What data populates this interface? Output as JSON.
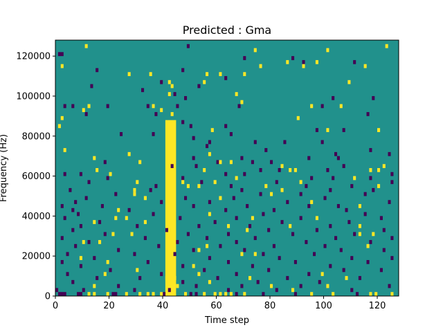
{
  "chart_data": {
    "type": "heatmap",
    "title": "Predicted : Gma",
    "xlabel": "Time step",
    "ylabel": "Frequency (Hz)",
    "xlim": [
      0,
      128
    ],
    "ylim": [
      0,
      128000
    ],
    "xticks": [
      0,
      20,
      40,
      60,
      80,
      100,
      120
    ],
    "yticks": [
      0,
      20000,
      40000,
      60000,
      80000,
      100000,
      120000
    ],
    "xtick_labels": [
      "0",
      "20",
      "40",
      "60",
      "80",
      "100",
      "120"
    ],
    "ytick_labels": [
      "0",
      "20000",
      "40000",
      "60000",
      "80000",
      "100000",
      "120000"
    ],
    "n_time_steps": 128,
    "n_freq_bins": 128,
    "grid": false,
    "colormap": "viridis",
    "colors": {
      "low": "#440154",
      "mid": "#21918c",
      "high": "#fde725"
    },
    "values_description": "three-level prediction: -1 low (purple), 0 background (teal), 1 high (yellow)",
    "bright_band": {
      "x_start": 41,
      "x_end": 45,
      "y_start": 0,
      "y_end": 88000,
      "value": 1
    },
    "cells": {
      "high": [
        [
          11,
          124000
        ],
        [
          123,
          124000
        ],
        [
          74,
          122000
        ],
        [
          101,
          122000
        ],
        [
          86,
          116000
        ],
        [
          97,
          116000
        ],
        [
          2,
          114000
        ],
        [
          76,
          114000
        ],
        [
          92,
          114000
        ],
        [
          115,
          114000
        ],
        [
          27,
          110000
        ],
        [
          35,
          110000
        ],
        [
          56,
          110000
        ],
        [
          61,
          110000
        ],
        [
          70,
          110000
        ],
        [
          42,
          106000
        ],
        [
          55,
          106000
        ],
        [
          109,
          106000
        ],
        [
          43,
          104000
        ],
        [
          42,
          100000
        ],
        [
          67,
          100000
        ],
        [
          69,
          96000
        ],
        [
          12,
          94000
        ],
        [
          36,
          94000
        ],
        [
          95,
          94000
        ],
        [
          106,
          94000
        ],
        [
          10,
          92000
        ],
        [
          39,
          92000
        ],
        [
          43,
          90000
        ],
        [
          2,
          88000
        ],
        [
          90,
          88000
        ],
        [
          1,
          84000
        ],
        [
          58,
          82000
        ],
        [
          101,
          82000
        ],
        [
          120,
          82000
        ],
        [
          3,
          72000
        ],
        [
          27,
          70000
        ],
        [
          57,
          70000
        ],
        [
          14,
          68000
        ],
        [
          31,
          66000
        ],
        [
          61,
          66000
        ],
        [
          65,
          66000
        ],
        [
          84,
          64000
        ],
        [
          122,
          64000
        ],
        [
          15,
          62000
        ],
        [
          55,
          62000
        ],
        [
          87,
          62000
        ],
        [
          89,
          62000
        ],
        [
          117,
          62000
        ],
        [
          120,
          62000
        ],
        [
          20,
          60000
        ],
        [
          67,
          58000
        ],
        [
          111,
          58000
        ],
        [
          30,
          56000
        ],
        [
          47,
          56000
        ],
        [
          59,
          56000
        ],
        [
          91,
          56000
        ],
        [
          49,
          54000
        ],
        [
          53,
          54000
        ],
        [
          78,
          54000
        ],
        [
          120,
          54000
        ],
        [
          29,
          52000
        ],
        [
          84,
          52000
        ],
        [
          29,
          50000
        ],
        [
          80,
          50000
        ],
        [
          33,
          48000
        ],
        [
          61,
          48000
        ],
        [
          95,
          46000
        ],
        [
          113,
          44000
        ],
        [
          23,
          42000
        ],
        [
          43,
          40000
        ],
        [
          57,
          40000
        ],
        [
          22,
          38000
        ],
        [
          26,
          38000
        ],
        [
          73,
          38000
        ],
        [
          97,
          38000
        ],
        [
          14,
          36000
        ],
        [
          33,
          36000
        ],
        [
          64,
          34000
        ],
        [
          87,
          34000
        ],
        [
          113,
          34000
        ],
        [
          71,
          32000
        ],
        [
          21,
          30000
        ],
        [
          28,
          30000
        ],
        [
          113,
          30000
        ],
        [
          118,
          30000
        ],
        [
          10,
          26000
        ],
        [
          16,
          26000
        ],
        [
          56,
          24000
        ],
        [
          116,
          24000
        ],
        [
          53,
          22000
        ],
        [
          69,
          20000
        ],
        [
          74,
          20000
        ],
        [
          9,
          18000
        ],
        [
          19,
          16000
        ],
        [
          51,
          14000
        ],
        [
          30,
          12000
        ],
        [
          18,
          10000
        ],
        [
          53,
          10000
        ],
        [
          99,
          10000
        ],
        [
          41,
          8000
        ],
        [
          44,
          8000
        ],
        [
          72,
          8000
        ],
        [
          108,
          8000
        ],
        [
          57,
          6000
        ],
        [
          14,
          4000
        ],
        [
          45,
          4000
        ],
        [
          80,
          4000
        ],
        [
          101,
          4000
        ],
        [
          88,
          2000
        ],
        [
          12,
          0
        ],
        [
          14,
          0
        ],
        [
          19,
          0
        ],
        [
          26,
          0
        ],
        [
          31,
          0
        ],
        [
          34,
          0
        ],
        [
          36,
          0
        ],
        [
          39,
          0
        ],
        [
          48,
          0
        ],
        [
          55,
          0
        ],
        [
          59,
          0
        ],
        [
          61,
          0
        ],
        [
          63,
          0
        ],
        [
          65,
          0
        ],
        [
          70,
          0
        ],
        [
          95,
          0
        ],
        [
          103,
          0
        ],
        [
          117,
          0
        ],
        [
          119,
          0
        ],
        [
          125,
          0
        ]
      ],
      "low": [
        [
          1,
          120000
        ],
        [
          2,
          120000
        ],
        [
          49,
          124000
        ],
        [
          70,
          118000
        ],
        [
          88,
          118000
        ],
        [
          92,
          116000
        ],
        [
          111,
          116000
        ],
        [
          15,
          112000
        ],
        [
          47,
          112000
        ],
        [
          63,
          108000
        ],
        [
          39,
          106000
        ],
        [
          13,
          104000
        ],
        [
          53,
          104000
        ],
        [
          32,
          102000
        ],
        [
          44,
          100000
        ],
        [
          48,
          98000
        ],
        [
          103,
          98000
        ],
        [
          118,
          98000
        ],
        [
          3,
          94000
        ],
        [
          6,
          94000
        ],
        [
          19,
          94000
        ],
        [
          34,
          94000
        ],
        [
          45,
          94000
        ],
        [
          68,
          94000
        ],
        [
          99,
          94000
        ],
        [
          11,
          90000
        ],
        [
          37,
          90000
        ],
        [
          116,
          90000
        ],
        [
          47,
          86000
        ],
        [
          50,
          84000
        ],
        [
          63,
          84000
        ],
        [
          97,
          82000
        ],
        [
          107,
          82000
        ],
        [
          24,
          80000
        ],
        [
          36,
          80000
        ],
        [
          65,
          80000
        ],
        [
          51,
          78000
        ],
        [
          57,
          76000
        ],
        [
          74,
          76000
        ],
        [
          85,
          76000
        ],
        [
          99,
          76000
        ],
        [
          56,
          74000
        ],
        [
          78,
          72000
        ],
        [
          117,
          72000
        ],
        [
          104,
          70000
        ],
        [
          124,
          70000
        ],
        [
          51,
          68000
        ],
        [
          69,
          68000
        ],
        [
          94,
          68000
        ],
        [
          105,
          68000
        ],
        [
          18,
          66000
        ],
        [
          60,
          66000
        ],
        [
          73,
          66000
        ],
        [
          80,
          66000
        ],
        [
          43,
          64000
        ],
        [
          52,
          64000
        ],
        [
          107,
          64000
        ],
        [
          76,
          62000
        ],
        [
          83,
          62000
        ],
        [
          101,
          62000
        ],
        [
          3,
          60000
        ],
        [
          9,
          60000
        ],
        [
          63,
          60000
        ],
        [
          70,
          60000
        ],
        [
          125,
          60000
        ],
        [
          19,
          58000
        ],
        [
          47,
          58000
        ],
        [
          95,
          58000
        ],
        [
          103,
          58000
        ],
        [
          117,
          58000
        ],
        [
          12,
          56000
        ],
        [
          54,
          56000
        ],
        [
          82,
          56000
        ],
        [
          125,
          56000
        ],
        [
          37,
          54000
        ],
        [
          65,
          54000
        ],
        [
          93,
          54000
        ],
        [
          110,
          54000
        ],
        [
          5,
          52000
        ],
        [
          35,
          52000
        ],
        [
          69,
          52000
        ],
        [
          102,
          52000
        ],
        [
          118,
          52000
        ],
        [
          22,
          50000
        ],
        [
          76,
          50000
        ],
        [
          91,
          50000
        ],
        [
          115,
          50000
        ],
        [
          11,
          48000
        ],
        [
          48,
          48000
        ],
        [
          66,
          48000
        ],
        [
          100,
          48000
        ],
        [
          7,
          46000
        ],
        [
          39,
          46000
        ],
        [
          57,
          46000
        ],
        [
          86,
          46000
        ],
        [
          124,
          46000
        ],
        [
          2,
          44000
        ],
        [
          17,
          44000
        ],
        [
          51,
          44000
        ],
        [
          71,
          44000
        ],
        [
          94,
          44000
        ],
        [
          105,
          44000
        ],
        [
          6,
          42000
        ],
        [
          27,
          42000
        ],
        [
          63,
          42000
        ],
        [
          81,
          42000
        ],
        [
          108,
          42000
        ],
        [
          8,
          40000
        ],
        [
          36,
          40000
        ],
        [
          77,
          40000
        ],
        [
          115,
          40000
        ],
        [
          3,
          38000
        ],
        [
          46,
          38000
        ],
        [
          67,
          38000
        ],
        [
          91,
          38000
        ],
        [
          121,
          38000
        ],
        [
          16,
          36000
        ],
        [
          59,
          36000
        ],
        [
          84,
          36000
        ],
        [
          109,
          36000
        ],
        [
          9,
          34000
        ],
        [
          30,
          34000
        ],
        [
          53,
          34000
        ],
        [
          72,
          34000
        ],
        [
          102,
          34000
        ],
        [
          6,
          32000
        ],
        [
          41,
          32000
        ],
        [
          79,
          32000
        ],
        [
          97,
          32000
        ],
        [
          122,
          32000
        ],
        [
          18,
          30000
        ],
        [
          49,
          30000
        ],
        [
          64,
          30000
        ],
        [
          88,
          30000
        ],
        [
          111,
          30000
        ],
        [
          2,
          28000
        ],
        [
          33,
          28000
        ],
        [
          56,
          28000
        ],
        [
          74,
          28000
        ],
        [
          104,
          28000
        ],
        [
          125,
          28000
        ],
        [
          12,
          26000
        ],
        [
          45,
          26000
        ],
        [
          67,
          26000
        ],
        [
          93,
          26000
        ],
        [
          117,
          26000
        ],
        [
          7,
          24000
        ],
        [
          38,
          24000
        ],
        [
          61,
          24000
        ],
        [
          81,
          24000
        ],
        [
          100,
          24000
        ],
        [
          23,
          22000
        ],
        [
          51,
          22000
        ],
        [
          70,
          22000
        ],
        [
          106,
          22000
        ],
        [
          122,
          22000
        ],
        [
          4,
          20000
        ],
        [
          29,
          20000
        ],
        [
          44,
          20000
        ],
        [
          77,
          20000
        ],
        [
          96,
          20000
        ],
        [
          14,
          18000
        ],
        [
          57,
          18000
        ],
        [
          83,
          18000
        ],
        [
          110,
          18000
        ],
        [
          125,
          18000
        ],
        [
          2,
          16000
        ],
        [
          34,
          16000
        ],
        [
          64,
          16000
        ],
        [
          89,
          16000
        ],
        [
          116,
          16000
        ],
        [
          9,
          14000
        ],
        [
          47,
          14000
        ],
        [
          73,
          14000
        ],
        [
          102,
          14000
        ],
        [
          20,
          12000
        ],
        [
          55,
          12000
        ],
        [
          79,
          12000
        ],
        [
          107,
          12000
        ],
        [
          121,
          12000
        ],
        [
          4,
          10000
        ],
        [
          39,
          10000
        ],
        [
          67,
          10000
        ],
        [
          94,
          10000
        ],
        [
          15,
          8000
        ],
        [
          31,
          8000
        ],
        [
          60,
          8000
        ],
        [
          86,
          8000
        ],
        [
          113,
          8000
        ],
        [
          6,
          6000
        ],
        [
          47,
          6000
        ],
        [
          75,
          6000
        ],
        [
          98,
          6000
        ],
        [
          23,
          4000
        ],
        [
          52,
          4000
        ],
        [
          69,
          4000
        ],
        [
          91,
          4000
        ],
        [
          124,
          4000
        ],
        [
          0,
          2000
        ],
        [
          10,
          2000
        ],
        [
          29,
          2000
        ],
        [
          42,
          2000
        ],
        [
          64,
          2000
        ],
        [
          82,
          2000
        ],
        [
          110,
          2000
        ],
        [
          1,
          0
        ],
        [
          2,
          0
        ],
        [
          3,
          0
        ],
        [
          8,
          0
        ],
        [
          9,
          0
        ],
        [
          21,
          0
        ],
        [
          22,
          0
        ],
        [
          40,
          0
        ],
        [
          50,
          0
        ],
        [
          52,
          0
        ],
        [
          67,
          0
        ],
        [
          77,
          0
        ],
        [
          89,
          0
        ],
        [
          112,
          0
        ]
      ]
    }
  }
}
